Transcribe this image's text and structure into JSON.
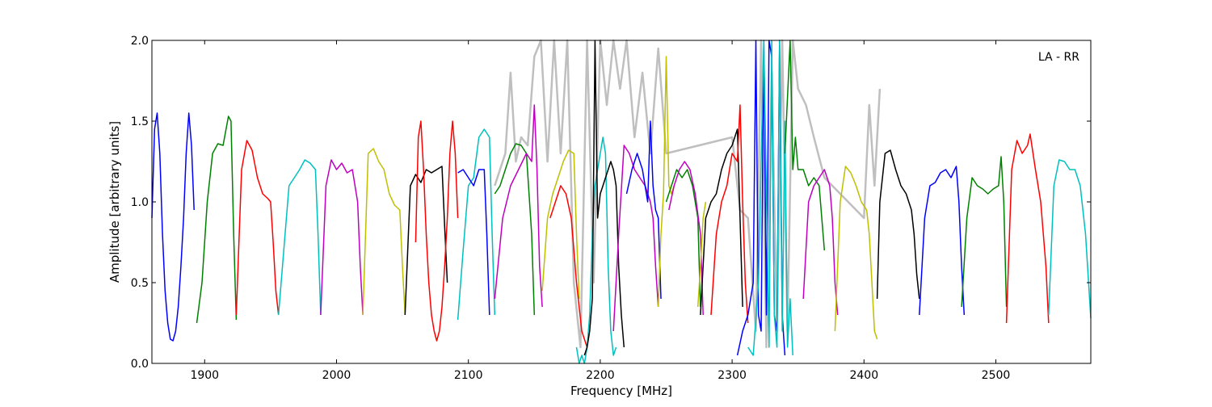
{
  "chart_data": {
    "type": "line",
    "annotation": "LA - RR",
    "xlabel": "Frequency [MHz]",
    "ylabel": "Amplitude [arbitrary units]",
    "xlim": [
      1860,
      2572
    ],
    "ylim": [
      0.0,
      2.0
    ],
    "xticks": [
      1900,
      2000,
      2100,
      2200,
      2300,
      2400,
      2500
    ],
    "xtick_labels": [
      "1900",
      "2000",
      "2100",
      "2200",
      "2300",
      "2400",
      "2500"
    ],
    "yticks": [
      0.0,
      0.5,
      1.0,
      1.5,
      2.0
    ],
    "ytick_labels": [
      "0.0",
      "0.5",
      "1.0",
      "1.5",
      "2.0"
    ],
    "grid": false,
    "background_trace": {
      "color": "#bfbfbf",
      "x": [
        2120,
        2128,
        2132,
        2136,
        2140,
        2145,
        2150,
        2155,
        2160,
        2165,
        2170,
        2175,
        2180,
        2185,
        2190,
        2195,
        2200,
        2205,
        2210,
        2215,
        2220,
        2226,
        2232,
        2238,
        2244,
        2250,
        2300,
        2306,
        2312,
        2318,
        2322,
        2326,
        2330,
        2334,
        2338,
        2342,
        2346,
        2350,
        2356,
        2362,
        2370,
        2400,
        2404,
        2408,
        2412
      ],
      "y": [
        1.1,
        1.3,
        1.8,
        1.25,
        1.4,
        1.35,
        1.9,
        2.0,
        1.25,
        2.0,
        1.3,
        2.0,
        0.5,
        0.1,
        2.0,
        0.5,
        2.0,
        1.6,
        2.0,
        1.7,
        2.0,
        1.4,
        1.8,
        1.3,
        1.95,
        1.3,
        1.4,
        0.95,
        0.9,
        0.2,
        2.0,
        0.1,
        1.8,
        0.2,
        2.0,
        0.2,
        2.0,
        1.7,
        1.6,
        1.4,
        1.15,
        0.9,
        1.6,
        1.1,
        1.7
      ]
    },
    "series": [
      {
        "color": "#0000ff",
        "x": [
          1860,
          1862,
          1864,
          1866,
          1868,
          1870,
          1872,
          1874,
          1876,
          1878,
          1880,
          1882,
          1884,
          1886,
          1888,
          1890,
          1892
        ],
        "y": [
          0.9,
          1.45,
          1.55,
          1.3,
          0.8,
          0.45,
          0.25,
          0.15,
          0.14,
          0.2,
          0.35,
          0.6,
          0.9,
          1.3,
          1.55,
          1.35,
          0.95
        ]
      },
      {
        "color": "#008000",
        "x": [
          1894,
          1898,
          1902,
          1906,
          1910,
          1914,
          1918,
          1920,
          1922,
          1924
        ],
        "y": [
          0.25,
          0.5,
          1.0,
          1.3,
          1.36,
          1.35,
          1.53,
          1.5,
          0.8,
          0.27
        ]
      },
      {
        "color": "#ff0000",
        "x": [
          1924,
          1928,
          1932,
          1936,
          1940,
          1944,
          1948,
          1950,
          1952,
          1954,
          1956
        ],
        "y": [
          0.3,
          1.2,
          1.38,
          1.32,
          1.15,
          1.05,
          1.02,
          1.0,
          0.75,
          0.45,
          0.3
        ]
      },
      {
        "color": "#00bfbf",
        "x": [
          1956,
          1960,
          1964,
          1968,
          1972,
          1976,
          1980,
          1984,
          1986,
          1988
        ],
        "y": [
          0.3,
          0.7,
          1.1,
          1.15,
          1.2,
          1.26,
          1.24,
          1.2,
          0.8,
          0.3
        ]
      },
      {
        "color": "#bf00bf",
        "x": [
          1988,
          1992,
          1996,
          2000,
          2004,
          2008,
          2012,
          2016,
          2018,
          2020
        ],
        "y": [
          0.3,
          1.1,
          1.26,
          1.2,
          1.24,
          1.18,
          1.2,
          1.0,
          0.6,
          0.3
        ]
      },
      {
        "color": "#bfbf00",
        "x": [
          2020,
          2024,
          2028,
          2032,
          2036,
          2040,
          2044,
          2048,
          2050,
          2052
        ],
        "y": [
          0.3,
          1.3,
          1.33,
          1.25,
          1.2,
          1.05,
          0.98,
          0.95,
          0.6,
          0.3
        ]
      },
      {
        "color": "#000000",
        "x": [
          2052,
          2056,
          2060,
          2064,
          2068,
          2072,
          2076,
          2080,
          2082,
          2084
        ],
        "y": [
          0.3,
          1.1,
          1.17,
          1.12,
          1.2,
          1.18,
          1.2,
          1.22,
          0.85,
          0.5
        ]
      },
      {
        "color": "#ff0000",
        "x": [
          2060,
          2062,
          2064,
          2066,
          2068,
          2070,
          2072,
          2074,
          2076,
          2078,
          2080,
          2082,
          2084,
          2086,
          2088,
          2090,
          2092
        ],
        "y": [
          0.75,
          1.4,
          1.5,
          1.2,
          0.8,
          0.5,
          0.3,
          0.2,
          0.14,
          0.2,
          0.35,
          0.6,
          0.9,
          1.3,
          1.5,
          1.3,
          0.9
        ]
      },
      {
        "color": "#00bfbf",
        "x": [
          2092,
          2096,
          2100,
          2104,
          2108,
          2112,
          2116,
          2118,
          2120
        ],
        "y": [
          0.27,
          0.7,
          1.1,
          1.15,
          1.4,
          1.45,
          1.4,
          0.8,
          0.3
        ]
      },
      {
        "color": "#0000ff",
        "x": [
          2092,
          2096,
          2100,
          2104,
          2108,
          2112,
          2114,
          2116
        ],
        "y": [
          1.18,
          1.2,
          1.15,
          1.1,
          1.2,
          1.2,
          0.8,
          0.3
        ]
      },
      {
        "color": "#008000",
        "x": [
          2120,
          2124,
          2128,
          2132,
          2136,
          2140,
          2144,
          2148,
          2150
        ],
        "y": [
          1.05,
          1.1,
          1.2,
          1.3,
          1.36,
          1.35,
          1.3,
          0.8,
          0.3
        ]
      },
      {
        "color": "#bf00bf",
        "x": [
          2120,
          2126,
          2132,
          2138,
          2144,
          2148,
          2150,
          2152,
          2154,
          2156
        ],
        "y": [
          0.4,
          0.9,
          1.1,
          1.2,
          1.3,
          1.25,
          1.6,
          1.2,
          0.6,
          0.35
        ]
      },
      {
        "color": "#bfbf00",
        "x": [
          2156,
          2160,
          2164,
          2168,
          2172,
          2176,
          2180,
          2182,
          2184
        ],
        "y": [
          0.45,
          0.9,
          1.05,
          1.15,
          1.25,
          1.32,
          1.3,
          0.8,
          0.4
        ]
      },
      {
        "color": "#ff0000",
        "x": [
          2162,
          2166,
          2170,
          2174,
          2178,
          2182,
          2186,
          2190
        ],
        "y": [
          0.9,
          1.0,
          1.1,
          1.05,
          0.9,
          0.5,
          0.2,
          0.1
        ]
      },
      {
        "color": "#00bfbf",
        "x": [
          2182,
          2184,
          2186,
          2188,
          2190,
          2192,
          2194,
          2196,
          2198,
          2200,
          2202,
          2204,
          2206,
          2208,
          2210,
          2212
        ],
        "y": [
          0.1,
          0.0,
          0.05,
          0.0,
          0.1,
          0.3,
          0.8,
          1.1,
          1.2,
          1.3,
          1.4,
          1.3,
          0.6,
          0.2,
          0.05,
          0.1
        ]
      },
      {
        "color": "#000000",
        "x": [
          2188,
          2190,
          2192,
          2194,
          2196,
          2198,
          2200,
          2202,
          2204,
          2206,
          2208,
          2210,
          2212,
          2214,
          2216,
          2218
        ],
        "y": [
          0.05,
          0.1,
          0.2,
          0.4,
          2.0,
          0.9,
          1.05,
          1.1,
          1.15,
          1.2,
          1.25,
          1.2,
          1.1,
          0.6,
          0.3,
          0.1
        ]
      },
      {
        "color": "#bf00bf",
        "x": [
          2210,
          2214,
          2218,
          2222,
          2226,
          2230,
          2234,
          2238,
          2240,
          2242,
          2244
        ],
        "y": [
          0.2,
          0.8,
          1.35,
          1.3,
          1.2,
          1.15,
          1.1,
          1.0,
          0.9,
          0.6,
          0.35
        ]
      },
      {
        "color": "#0000ff",
        "x": [
          2220,
          2224,
          2228,
          2232,
          2236,
          2238,
          2240,
          2242,
          2244,
          2246
        ],
        "y": [
          1.05,
          1.2,
          1.3,
          1.2,
          1.0,
          1.5,
          1.1,
          0.95,
          0.9,
          0.4
        ]
      },
      {
        "color": "#bfbf00",
        "x": [
          2244,
          2246,
          2248,
          2250,
          2252,
          2254,
          2256
        ],
        "y": [
          0.35,
          0.8,
          1.05,
          1.9,
          1.1,
          1.05,
          1.1
        ]
      },
      {
        "color": "#008000",
        "x": [
          2250,
          2254,
          2258,
          2262,
          2266,
          2270,
          2274,
          2276
        ],
        "y": [
          1.0,
          1.1,
          1.2,
          1.15,
          1.2,
          1.1,
          0.9,
          0.35
        ]
      },
      {
        "color": "#bf00bf",
        "x": [
          2252,
          2256,
          2260,
          2264,
          2268,
          2272,
          2276,
          2278
        ],
        "y": [
          0.95,
          1.1,
          1.2,
          1.25,
          1.2,
          1.05,
          0.8,
          0.3
        ]
      },
      {
        "color": "#bfbf00",
        "x": [
          2274,
          2276,
          2278,
          2280
        ],
        "y": [
          0.35,
          0.6,
          0.9,
          1.0
        ]
      },
      {
        "color": "#000000",
        "x": [
          2276,
          2280,
          2284,
          2288,
          2292,
          2296,
          2300,
          2304,
          2306,
          2308
        ],
        "y": [
          0.3,
          0.9,
          1.0,
          1.05,
          1.2,
          1.3,
          1.35,
          1.45,
          0.9,
          0.35
        ]
      },
      {
        "color": "#ff0000",
        "x": [
          2284,
          2288,
          2292,
          2296,
          2300,
          2304,
          2306,
          2308,
          2310,
          2312
        ],
        "y": [
          0.3,
          0.8,
          1.0,
          1.1,
          1.3,
          1.25,
          1.6,
          1.0,
          0.5,
          0.25
        ]
      },
      {
        "color": "#0000ff",
        "x": [
          2304,
          2308,
          2312,
          2316,
          2318,
          2320,
          2322,
          2324,
          2326,
          2328,
          2330,
          2332,
          2334,
          2336,
          2338,
          2340
        ],
        "y": [
          0.05,
          0.2,
          0.3,
          0.5,
          2.0,
          0.3,
          0.2,
          2.0,
          0.3,
          2.0,
          1.9,
          0.3,
          0.2,
          2.0,
          0.3,
          0.05
        ]
      },
      {
        "color": "#00bfbf",
        "x": [
          2312,
          2316,
          2320,
          2324,
          2328,
          2330,
          2332,
          2334,
          2336,
          2338,
          2340,
          2342,
          2344,
          2346
        ],
        "y": [
          0.1,
          0.05,
          0.5,
          2.0,
          0.1,
          2.0,
          0.3,
          0.1,
          2.0,
          0.2,
          1.5,
          0.1,
          0.4,
          0.05
        ]
      },
      {
        "color": "#008000",
        "x": [
          2340,
          2344,
          2346,
          2348,
          2350,
          2354,
          2358,
          2362,
          2366,
          2370
        ],
        "y": [
          1.3,
          2.0,
          1.2,
          1.4,
          1.2,
          1.2,
          1.1,
          1.15,
          1.1,
          0.7
        ]
      },
      {
        "color": "#bf00bf",
        "x": [
          2354,
          2358,
          2362,
          2366,
          2370,
          2374,
          2376,
          2378,
          2380
        ],
        "y": [
          0.4,
          1.0,
          1.1,
          1.15,
          1.2,
          1.1,
          0.9,
          0.5,
          0.3
        ]
      },
      {
        "color": "#bfbf00",
        "x": [
          2378,
          2382,
          2386,
          2390,
          2394,
          2398,
          2402,
          2404,
          2406,
          2408,
          2410
        ],
        "y": [
          0.2,
          1.0,
          1.22,
          1.18,
          1.1,
          1.0,
          0.95,
          0.8,
          0.5,
          0.2,
          0.15
        ]
      },
      {
        "color": "#000000",
        "x": [
          2410,
          2412,
          2416,
          2420,
          2424,
          2428,
          2432,
          2436,
          2438,
          2440,
          2442
        ],
        "y": [
          0.4,
          1.0,
          1.3,
          1.32,
          1.2,
          1.1,
          1.05,
          0.95,
          0.8,
          0.55,
          0.4
        ]
      },
      {
        "color": "#0000ff",
        "x": [
          2442,
          2446,
          2450,
          2454,
          2458,
          2462,
          2466,
          2470,
          2472,
          2474,
          2476
        ],
        "y": [
          0.3,
          0.9,
          1.1,
          1.12,
          1.18,
          1.2,
          1.15,
          1.22,
          1.0,
          0.6,
          0.3
        ]
      },
      {
        "color": "#008000",
        "x": [
          2474,
          2478,
          2482,
          2486,
          2490,
          2494,
          2498,
          2502,
          2504,
          2506,
          2508
        ],
        "y": [
          0.35,
          0.9,
          1.15,
          1.1,
          1.08,
          1.05,
          1.08,
          1.1,
          1.28,
          1.0,
          0.35
        ]
      },
      {
        "color": "#ff0000",
        "x": [
          2508,
          2512,
          2516,
          2520,
          2524,
          2526,
          2530,
          2534,
          2538,
          2540
        ],
        "y": [
          0.25,
          1.2,
          1.38,
          1.3,
          1.35,
          1.42,
          1.2,
          1.0,
          0.6,
          0.25
        ]
      },
      {
        "color": "#00bfbf",
        "x": [
          2540,
          2544,
          2548,
          2552,
          2556,
          2560,
          2564,
          2568,
          2572
        ],
        "y": [
          0.3,
          1.1,
          1.26,
          1.25,
          1.2,
          1.2,
          1.1,
          0.8,
          0.28
        ]
      }
    ]
  }
}
